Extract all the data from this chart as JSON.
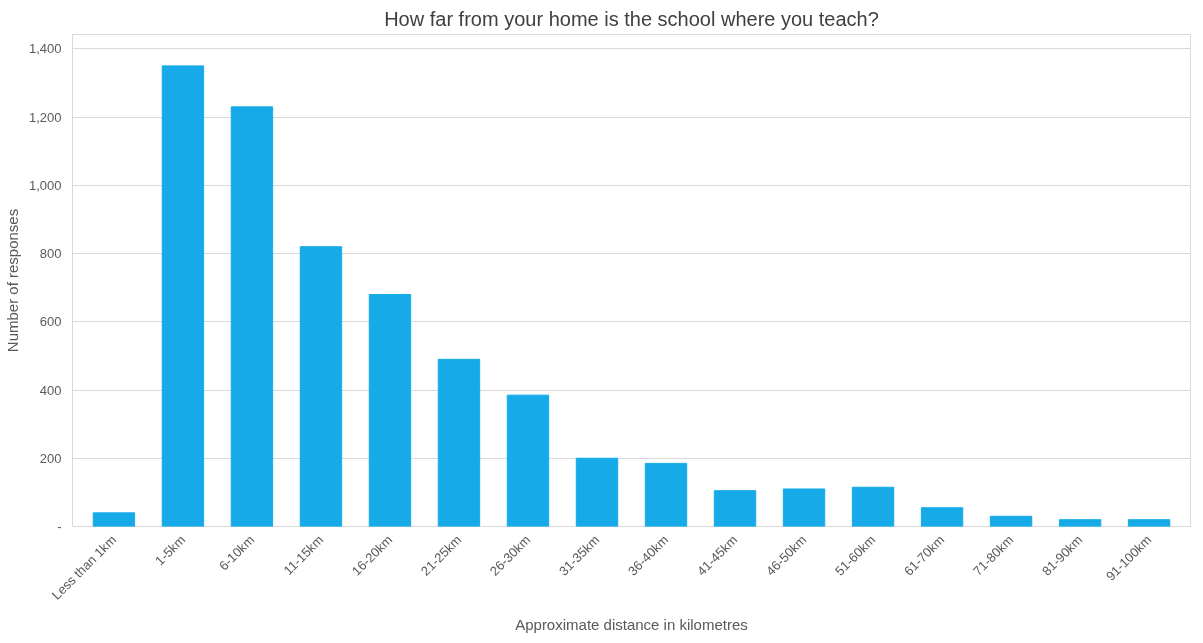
{
  "chart_data": {
    "type": "bar",
    "title": "How far from your home is the school where you teach?",
    "xlabel": "Approximate distance in kilometres",
    "ylabel": "Number of responses",
    "categories": [
      "Less than 1km",
      "1-5km",
      "6-10km",
      "11-15km",
      "16-20km",
      "21-25km",
      "26-30km",
      "31-35km",
      "36-40km",
      "41-45km",
      "46-50km",
      "51-60km",
      "61-70km",
      "71-80km",
      "81-90km",
      "91-100km"
    ],
    "values": [
      40,
      1350,
      1230,
      820,
      680,
      490,
      385,
      200,
      185,
      105,
      110,
      115,
      55,
      30,
      20,
      20
    ],
    "color": "#16aae8",
    "ylim": [
      0,
      1400
    ],
    "yticks": [
      {
        "value": 0,
        "label": "-"
      },
      {
        "value": 200,
        "label": "200"
      },
      {
        "value": 400,
        "label": "400"
      },
      {
        "value": 600,
        "label": "600"
      },
      {
        "value": 800,
        "label": "800"
      },
      {
        "value": 1000,
        "label": "1,000"
      },
      {
        "value": 1200,
        "label": "1,200"
      },
      {
        "value": 1400,
        "label": "1,400"
      }
    ],
    "grid": "y"
  }
}
